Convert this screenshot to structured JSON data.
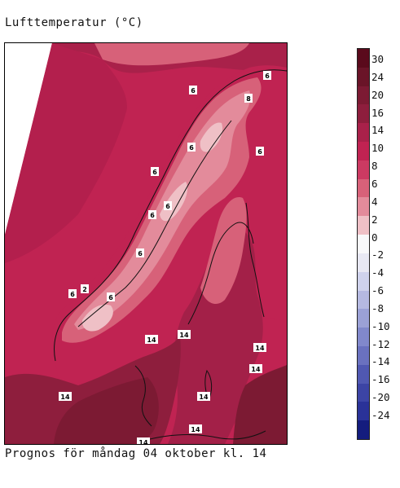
{
  "title": "Lufttemperatur (°C)",
  "caption": "Prognos för måndag 04 oktober kl. 14",
  "legend": {
    "labels": [
      "30",
      "24",
      "20",
      "16",
      "14",
      "10",
      "8",
      "6",
      "4",
      "2",
      "0",
      "-2",
      "-4",
      "-6",
      "-8",
      "-10",
      "-12",
      "-14",
      "-16",
      "-20",
      "-24"
    ],
    "colors": [
      "#5a0a1c",
      "#6a1428",
      "#7c1a33",
      "#8e1e3d",
      "#a9214a",
      "#c02352",
      "#cc3a62",
      "#d76179",
      "#e38b9b",
      "#efc0c6",
      "#f8f8fa",
      "#e8e8f3",
      "#cfd2ec",
      "#b5b9e1",
      "#9ba1d6",
      "#8188cb",
      "#6a71bf",
      "#5058b2",
      "#3c44a5",
      "#2a3298",
      "#141c7e"
    ]
  },
  "map": {
    "colors": {
      "sea_north": "#c02352",
      "sea_mid": "#b31f4d",
      "south_land": "#8e1e3d",
      "south_dark": "#7c1a33",
      "warm_sea": "#a9214a",
      "mountain_6": "#d76179",
      "mountain_4": "#e38b9b",
      "mountain_2": "#efc0c6",
      "baltic": "#a32048",
      "coast": "#111111",
      "nodata": "#ffffff"
    },
    "isolines": [
      {
        "label": "6",
        "key": "n1"
      },
      {
        "label": "8",
        "key": "n2"
      },
      {
        "label": "6",
        "key": "n3"
      },
      {
        "label": "6",
        "key": "n4"
      },
      {
        "label": "6",
        "key": "n5"
      },
      {
        "label": "6",
        "key": "n6"
      },
      {
        "label": "6",
        "key": "n7"
      },
      {
        "label": "6",
        "key": "n8"
      },
      {
        "label": "6",
        "key": "n9"
      },
      {
        "label": "2",
        "key": "n10"
      },
      {
        "label": "6",
        "key": "n11"
      },
      {
        "label": "6",
        "key": "n12"
      },
      {
        "label": "14",
        "key": "s1"
      },
      {
        "label": "14",
        "key": "s2"
      },
      {
        "label": "14",
        "key": "s3"
      },
      {
        "label": "14",
        "key": "s4"
      },
      {
        "label": "14",
        "key": "s5"
      },
      {
        "label": "14",
        "key": "s6"
      },
      {
        "label": "14",
        "key": "s7"
      },
      {
        "label": "14",
        "key": "s8"
      }
    ]
  }
}
